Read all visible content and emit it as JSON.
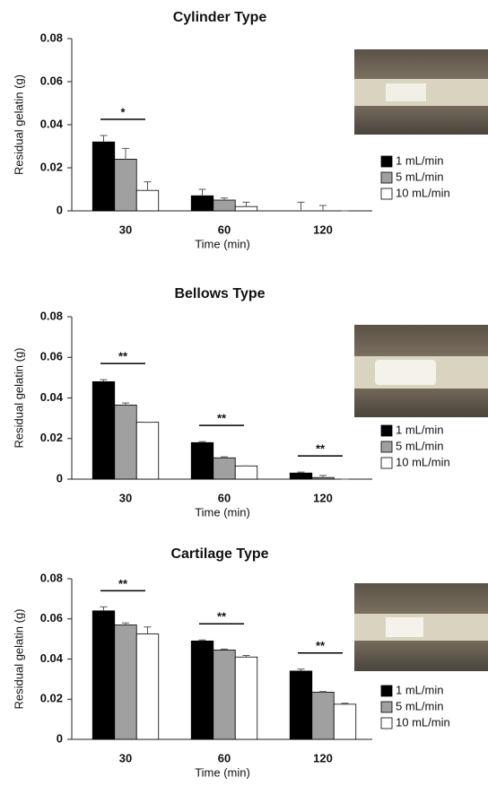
{
  "chart_data": [
    {
      "type": "bar",
      "title": "Cylinder Type",
      "y_label": "Residual gelatin (g)",
      "x_label": "Time (min)",
      "categories": [
        "30",
        "60",
        "120"
      ],
      "ylim": [
        0,
        0.08
      ],
      "yticks": [
        0,
        0.02,
        0.04,
        0.06,
        0.08
      ],
      "series": [
        {
          "name": "1 mL/min",
          "color": "#000000",
          "values": [
            0.032,
            0.007,
            0
          ],
          "errors": [
            0.003,
            0.003,
            0.004
          ]
        },
        {
          "name": "5 mL/min",
          "color": "#a0a0a0",
          "values": [
            0.024,
            0.005,
            0
          ],
          "errors": [
            0.005,
            0.001,
            0.0025
          ]
        },
        {
          "name": "10 mL/min",
          "color": "#ffffff",
          "values": [
            0.0095,
            0.002,
            0
          ],
          "errors": [
            0.004,
            0.002,
            0
          ]
        }
      ],
      "annotations": [
        {
          "category": 0,
          "label": "*"
        }
      ]
    },
    {
      "type": "bar",
      "title": "Bellows Type",
      "y_label": "Residual gelatin (g)",
      "x_label": "Time (min)",
      "categories": [
        "30",
        "60",
        "120"
      ],
      "ylim": [
        0,
        0.08
      ],
      "yticks": [
        0,
        0.02,
        0.04,
        0.06,
        0.08
      ],
      "series": [
        {
          "name": "1 mL/min",
          "color": "#000000",
          "values": [
            0.048,
            0.018,
            0.003
          ],
          "errors": [
            0.001,
            0.0005,
            0.0005
          ]
        },
        {
          "name": "5 mL/min",
          "color": "#a0a0a0",
          "values": [
            0.0365,
            0.0105,
            0.0008
          ],
          "errors": [
            0.001,
            0.0005,
            0.001
          ]
        },
        {
          "name": "10 mL/min",
          "color": "#ffffff",
          "values": [
            0.028,
            0.0065,
            0
          ],
          "errors": [
            0,
            0,
            0
          ]
        }
      ],
      "annotations": [
        {
          "category": 0,
          "label": "**"
        },
        {
          "category": 1,
          "label": "**"
        },
        {
          "category": 2,
          "label": "**"
        }
      ]
    },
    {
      "type": "bar",
      "title": "Cartilage Type",
      "y_label": "Residual gelatin (g)",
      "x_label": "Time (min)",
      "categories": [
        "30",
        "60",
        "120"
      ],
      "ylim": [
        0,
        0.08
      ],
      "yticks": [
        0,
        0.02,
        0.04,
        0.06,
        0.08
      ],
      "series": [
        {
          "name": "1 mL/min",
          "color": "#000000",
          "values": [
            0.064,
            0.049,
            0.034
          ],
          "errors": [
            0.002,
            0.0005,
            0.001
          ]
        },
        {
          "name": "5 mL/min",
          "color": "#a0a0a0",
          "values": [
            0.057,
            0.0445,
            0.0235
          ],
          "errors": [
            0.001,
            0.0005,
            0.0003
          ]
        },
        {
          "name": "10 mL/min",
          "color": "#ffffff",
          "values": [
            0.0525,
            0.041,
            0.0175
          ],
          "errors": [
            0.0035,
            0.0008,
            0.0005
          ]
        }
      ],
      "annotations": [
        {
          "category": 0,
          "label": "**"
        },
        {
          "category": 1,
          "label": "**"
        },
        {
          "category": 2,
          "label": "**"
        }
      ]
    }
  ]
}
